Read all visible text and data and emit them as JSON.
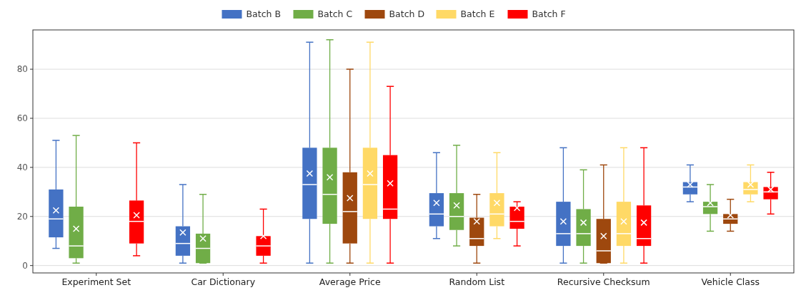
{
  "chart_data": {
    "type": "box",
    "categories": [
      "Experiment Set",
      "Car Dictionary",
      "Average Price",
      "Random List",
      "Recursive Checksum",
      "Vehicle Class"
    ],
    "ylim": [
      -3,
      96
    ],
    "yticks": [
      0,
      20,
      40,
      60,
      80
    ],
    "grid": "y",
    "legend": "top",
    "series": [
      {
        "name": "Batch B",
        "color": "#4472c4",
        "boxes": [
          {
            "low": 7,
            "q1": 11.5,
            "median": 19,
            "q3": 31,
            "high": 51,
            "mean": 22.5
          },
          {
            "low": 1,
            "q1": 4,
            "median": 9,
            "q3": 16,
            "high": 33,
            "mean": 13.5
          },
          {
            "low": 1,
            "q1": 19,
            "median": 33,
            "q3": 48,
            "high": 91,
            "mean": 37.5
          },
          {
            "low": 11,
            "q1": 16,
            "median": 21,
            "q3": 29.5,
            "high": 46,
            "mean": 25.5
          },
          {
            "low": 1,
            "q1": 8,
            "median": 13,
            "q3": 26,
            "high": 48,
            "mean": 18
          },
          {
            "low": 26,
            "q1": 29,
            "median": 32,
            "q3": 34,
            "high": 41,
            "mean": 33
          }
        ]
      },
      {
        "name": "Batch C",
        "color": "#70ad47",
        "boxes": [
          {
            "low": 1,
            "q1": 3,
            "median": 8,
            "q3": 24,
            "high": 53,
            "mean": 15
          },
          {
            "low": 1,
            "q1": 1,
            "median": 7,
            "q3": 13,
            "high": 29,
            "mean": 11
          },
          {
            "low": 1,
            "q1": 17,
            "median": 29,
            "q3": 48,
            "high": 92,
            "mean": 36
          },
          {
            "low": 8,
            "q1": 14.5,
            "median": 20,
            "q3": 29.5,
            "high": 49,
            "mean": 24.5
          },
          {
            "low": 1,
            "q1": 8,
            "median": 13,
            "q3": 23,
            "high": 39,
            "mean": 17.5
          },
          {
            "low": 14,
            "q1": 21,
            "median": 24,
            "q3": 26,
            "high": 33,
            "mean": 25.5
          }
        ]
      },
      {
        "name": "Batch D",
        "color": "#9e480e",
        "boxes": [
          null,
          null,
          {
            "low": 1,
            "q1": 9,
            "median": 22,
            "q3": 38,
            "high": 80,
            "mean": 27.5
          },
          {
            "low": 1,
            "q1": 8,
            "median": 11,
            "q3": 19.5,
            "high": 29,
            "mean": 18
          },
          {
            "low": 1,
            "q1": 1,
            "median": 6,
            "q3": 19,
            "high": 41,
            "mean": 12
          },
          {
            "low": 14,
            "q1": 17,
            "median": 19,
            "q3": 21,
            "high": 27,
            "mean": 20.5
          }
        ]
      },
      {
        "name": "Batch E",
        "color": "#ffd966",
        "boxes": [
          null,
          null,
          {
            "low": 1,
            "q1": 19,
            "median": 33,
            "q3": 48,
            "high": 91,
            "mean": 37.5
          },
          {
            "low": 11,
            "q1": 16,
            "median": 21,
            "q3": 29.5,
            "high": 46,
            "mean": 25.5
          },
          {
            "low": 1,
            "q1": 8,
            "median": 13,
            "q3": 26,
            "high": 48,
            "mean": 18
          },
          {
            "low": 26,
            "q1": 29,
            "median": 31,
            "q3": 34,
            "high": 41,
            "mean": 33
          }
        ]
      },
      {
        "name": "Batch F",
        "color": "#ff0000",
        "boxes": [
          {
            "low": 4,
            "q1": 9,
            "median": 18,
            "q3": 26.5,
            "high": 50,
            "mean": 20.5
          },
          {
            "low": 1,
            "q1": 4,
            "median": 8,
            "q3": 12,
            "high": 23,
            "mean": 12
          },
          {
            "low": 1,
            "q1": 19,
            "median": 23,
            "q3": 45,
            "high": 73,
            "mean": 33.5
          },
          {
            "low": 8,
            "q1": 15,
            "median": 18,
            "q3": 24,
            "high": 26,
            "mean": 23.5
          },
          {
            "low": 1,
            "q1": 8,
            "median": 11,
            "q3": 24.5,
            "high": 48,
            "mean": 17.5
          },
          {
            "low": 21,
            "q1": 27,
            "median": 30,
            "q3": 32,
            "high": 38,
            "mean": 31
          }
        ]
      }
    ]
  }
}
